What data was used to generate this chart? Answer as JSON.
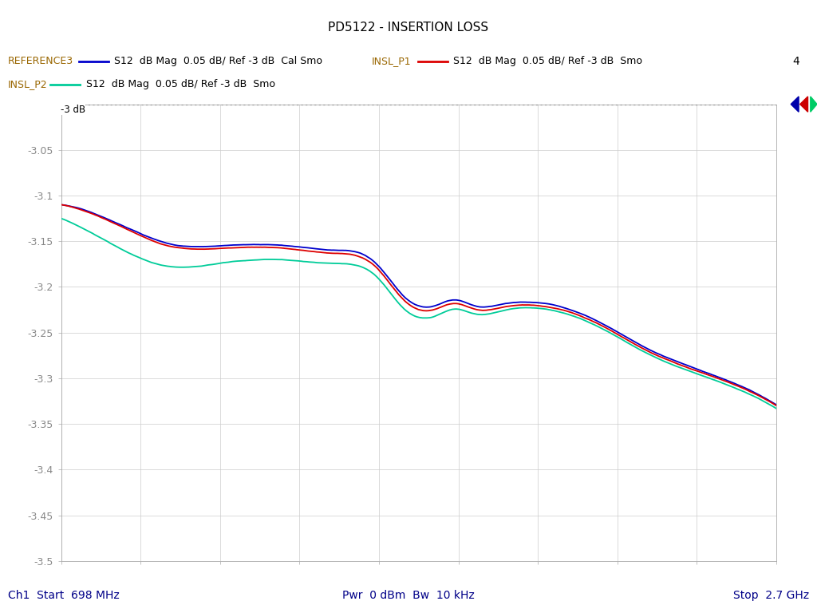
{
  "title": "PD5122 - INSERTION LOSS",
  "xstart_mhz": 698,
  "xstop_ghz": 2.7,
  "ymin": -3.5,
  "ymax": -3.0,
  "grid_color": "#cccccc",
  "bg_color": "#ffffff",
  "bottom_left": "Ch1  Start  698 MHz",
  "bottom_center": "Pwr  0 dBm  Bw  10 kHz",
  "bottom_right": "Stop  2.7 GHz",
  "legend1_name": "REFERENCE3",
  "legend1_desc": "S12  dB Mag  0.05 dB/ Ref -3 dB  Cal Smo",
  "legend1_color": "#0000cc",
  "legend2_name": "INSL_P1",
  "legend2_desc": "S12  dB Mag  0.05 dB/ Ref -3 dB  Smo",
  "legend2_color": "#dd0000",
  "legend3_name": "INSL_P2",
  "legend3_desc": "S12  dB Mag  0.05 dB/ Ref -3 dB  Smo",
  "legend3_color": "#00cc99",
  "marker_num": "4",
  "ref_line_y": -3.0,
  "ytick_labels": [
    "-3.05",
    "-3.1",
    "-3.15",
    "-3.2",
    "-3.25",
    "-3.3",
    "-3.35",
    "-3.4",
    "-3.45",
    "-3.5"
  ],
  "ytick_values": [
    -3.05,
    -3.1,
    -3.15,
    -3.2,
    -3.25,
    -3.3,
    -3.35,
    -3.4,
    -3.45,
    -3.5
  ],
  "red_knots_t": [
    0.0,
    0.05,
    0.1,
    0.15,
    0.22,
    0.3,
    0.38,
    0.44,
    0.48,
    0.52,
    0.55,
    0.58,
    0.62,
    0.66,
    0.7,
    0.75,
    0.82,
    0.9,
    0.95,
    1.0
  ],
  "red_knots_y": [
    -3.11,
    -3.122,
    -3.14,
    -3.155,
    -3.158,
    -3.157,
    -3.163,
    -3.178,
    -3.215,
    -3.225,
    -3.218,
    -3.225,
    -3.222,
    -3.22,
    -3.225,
    -3.24,
    -3.27,
    -3.295,
    -3.31,
    -3.33
  ],
  "blue_offset_t": [
    0.0,
    0.1,
    0.3,
    0.5,
    0.7,
    0.9,
    1.0
  ],
  "blue_offset_y": [
    0.0,
    0.002,
    0.003,
    0.004,
    0.003,
    0.002,
    0.001
  ],
  "cyan_offset_t": [
    0.0,
    0.05,
    0.1,
    0.2,
    0.35,
    0.45,
    0.52,
    0.58,
    0.65,
    0.72,
    0.8,
    0.9,
    1.0
  ],
  "cyan_offset_y": [
    -0.015,
    -0.022,
    -0.025,
    -0.018,
    -0.012,
    -0.01,
    -0.008,
    -0.005,
    -0.003,
    -0.003,
    -0.003,
    -0.003,
    -0.003
  ]
}
